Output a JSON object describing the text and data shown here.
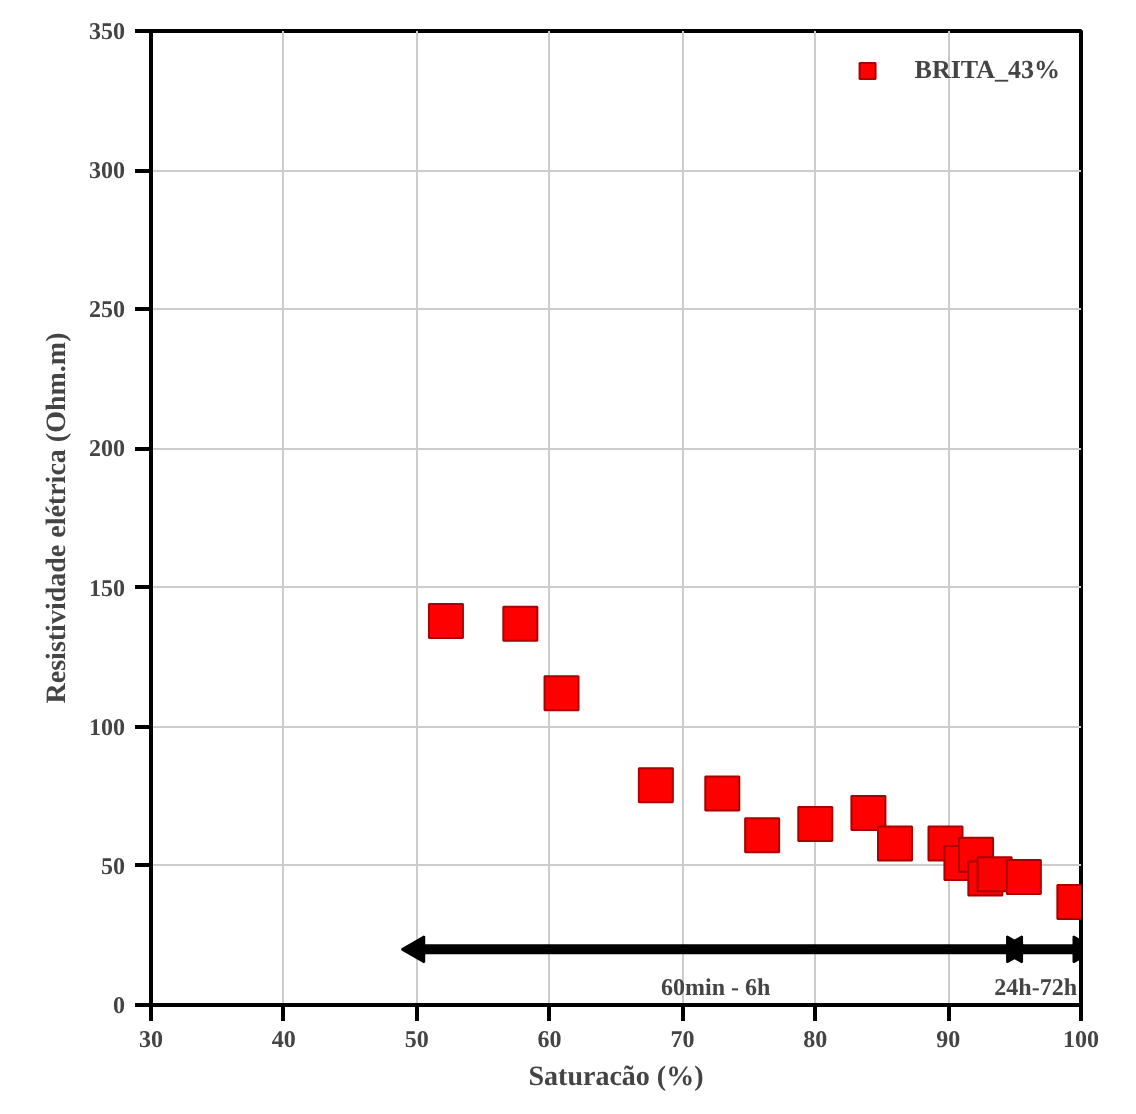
{
  "chart_data": {
    "type": "scatter",
    "xlabel": "Saturacão (%)",
    "ylabel": "Resistividade elétrica (Ohm.m)",
    "xlim": [
      30,
      100
    ],
    "xticks": [
      30,
      40,
      50,
      60,
      70,
      80,
      90,
      100
    ],
    "ylim": [
      0,
      350
    ],
    "yticks": [
      0,
      50,
      100,
      150,
      200,
      250,
      300,
      350
    ],
    "grid": true,
    "legend": "top right",
    "series": [
      {
        "name": "BRITA_43%",
        "color": "#ff0000",
        "marker": "square",
        "x": [
          52.2,
          57.8,
          60.9,
          68,
          73,
          76,
          80,
          84,
          86,
          89.8,
          91,
          92.1,
          92.8,
          93.5,
          95.7,
          99.5
        ],
        "values": [
          138,
          137,
          112,
          79,
          76,
          61,
          65,
          69,
          58,
          58,
          51,
          54,
          45.5,
          47,
          46,
          37
        ]
      },
      {
        "type": "line",
        "color": "#000000",
        "marker": "triangle",
        "x": [
          50,
          95
        ],
        "values": [
          20,
          20
        ]
      },
      {
        "type": "line",
        "color": "#000000",
        "marker": "triangle",
        "x": [
          95,
          100
        ],
        "values": [
          20,
          20
        ]
      }
    ],
    "annotations": [
      {
        "text": "60min - 6h",
        "x": 72.5,
        "y": 20
      },
      {
        "text": "24h-72h",
        "x": 97.5,
        "y": 20
      }
    ]
  }
}
